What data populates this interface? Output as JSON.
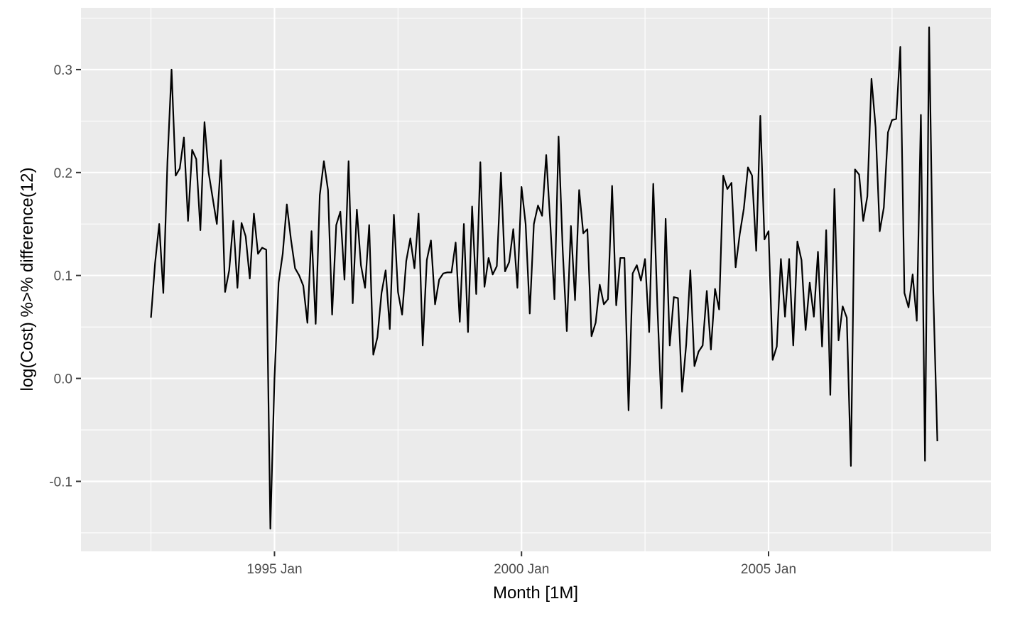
{
  "chart_data": {
    "type": "line",
    "title": "",
    "xlabel": "Month [1M]",
    "ylabel": "log(Cost) %>% difference(12)",
    "x_start": "1992 Jul",
    "x_end": "2008 Jun",
    "x_frequency": "monthly",
    "xlim": [
      "1991 Feb",
      "2009 Jul"
    ],
    "ylim": [
      -0.168,
      0.36
    ],
    "x_ticks": [
      {
        "date": "1995 Jan",
        "label": "1995 Jan"
      },
      {
        "date": "2000 Jan",
        "label": "2000 Jan"
      },
      {
        "date": "2005 Jan",
        "label": "2005 Jan"
      }
    ],
    "y_ticks": [
      {
        "value": -0.1,
        "label": "-0.1"
      },
      {
        "value": 0.0,
        "label": "0.0"
      },
      {
        "value": 0.1,
        "label": "0.1"
      },
      {
        "value": 0.2,
        "label": "0.2"
      },
      {
        "value": 0.3,
        "label": "0.3"
      }
    ],
    "grid": true,
    "legend": "none",
    "series": [
      {
        "color": "#000000",
        "values": [
          0.059,
          0.112,
          0.15,
          0.083,
          0.21,
          0.3,
          0.197,
          0.204,
          0.234,
          0.153,
          0.222,
          0.213,
          0.144,
          0.249,
          0.2,
          0.175,
          0.15,
          0.212,
          0.084,
          0.105,
          0.153,
          0.088,
          0.151,
          0.138,
          0.097,
          0.16,
          0.121,
          0.127,
          0.125,
          -0.146,
          0.0,
          0.093,
          0.121,
          0.169,
          0.135,
          0.107,
          0.1,
          0.09,
          0.054,
          0.143,
          0.053,
          0.178,
          0.211,
          0.183,
          0.062,
          0.149,
          0.162,
          0.096,
          0.211,
          0.073,
          0.164,
          0.11,
          0.088,
          0.149,
          0.023,
          0.04,
          0.083,
          0.105,
          0.048,
          0.159,
          0.084,
          0.062,
          0.114,
          0.136,
          0.107,
          0.16,
          0.032,
          0.115,
          0.134,
          0.072,
          0.096,
          0.102,
          0.103,
          0.103,
          0.132,
          0.055,
          0.15,
          0.045,
          0.167,
          0.082,
          0.21,
          0.089,
          0.117,
          0.101,
          0.109,
          0.2,
          0.104,
          0.113,
          0.145,
          0.088,
          0.186,
          0.15,
          0.063,
          0.15,
          0.168,
          0.158,
          0.217,
          0.15,
          0.077,
          0.235,
          0.125,
          0.046,
          0.148,
          0.076,
          0.183,
          0.141,
          0.145,
          0.041,
          0.054,
          0.091,
          0.072,
          0.077,
          0.187,
          0.071,
          0.117,
          0.117,
          -0.031,
          0.102,
          0.11,
          0.095,
          0.116,
          0.045,
          0.189,
          0.07,
          -0.029,
          0.155,
          0.032,
          0.079,
          0.078,
          -0.013,
          0.033,
          0.105,
          0.012,
          0.026,
          0.032,
          0.085,
          0.028,
          0.087,
          0.067,
          0.197,
          0.184,
          0.19,
          0.108,
          0.14,
          0.165,
          0.205,
          0.197,
          0.124,
          0.255,
          0.135,
          0.143,
          0.018,
          0.031,
          0.116,
          0.06,
          0.116,
          0.032,
          0.133,
          0.115,
          0.047,
          0.093,
          0.06,
          0.123,
          0.031,
          0.144,
          -0.016,
          0.184,
          0.037,
          0.07,
          0.059,
          -0.085,
          0.203,
          0.198,
          0.153,
          0.177,
          0.291,
          0.244,
          0.143,
          0.166,
          0.239,
          0.251,
          0.252,
          0.322,
          0.083,
          0.069,
          0.101,
          0.056,
          0.256,
          -0.08,
          0.341,
          0.085,
          -0.061
        ]
      }
    ]
  }
}
